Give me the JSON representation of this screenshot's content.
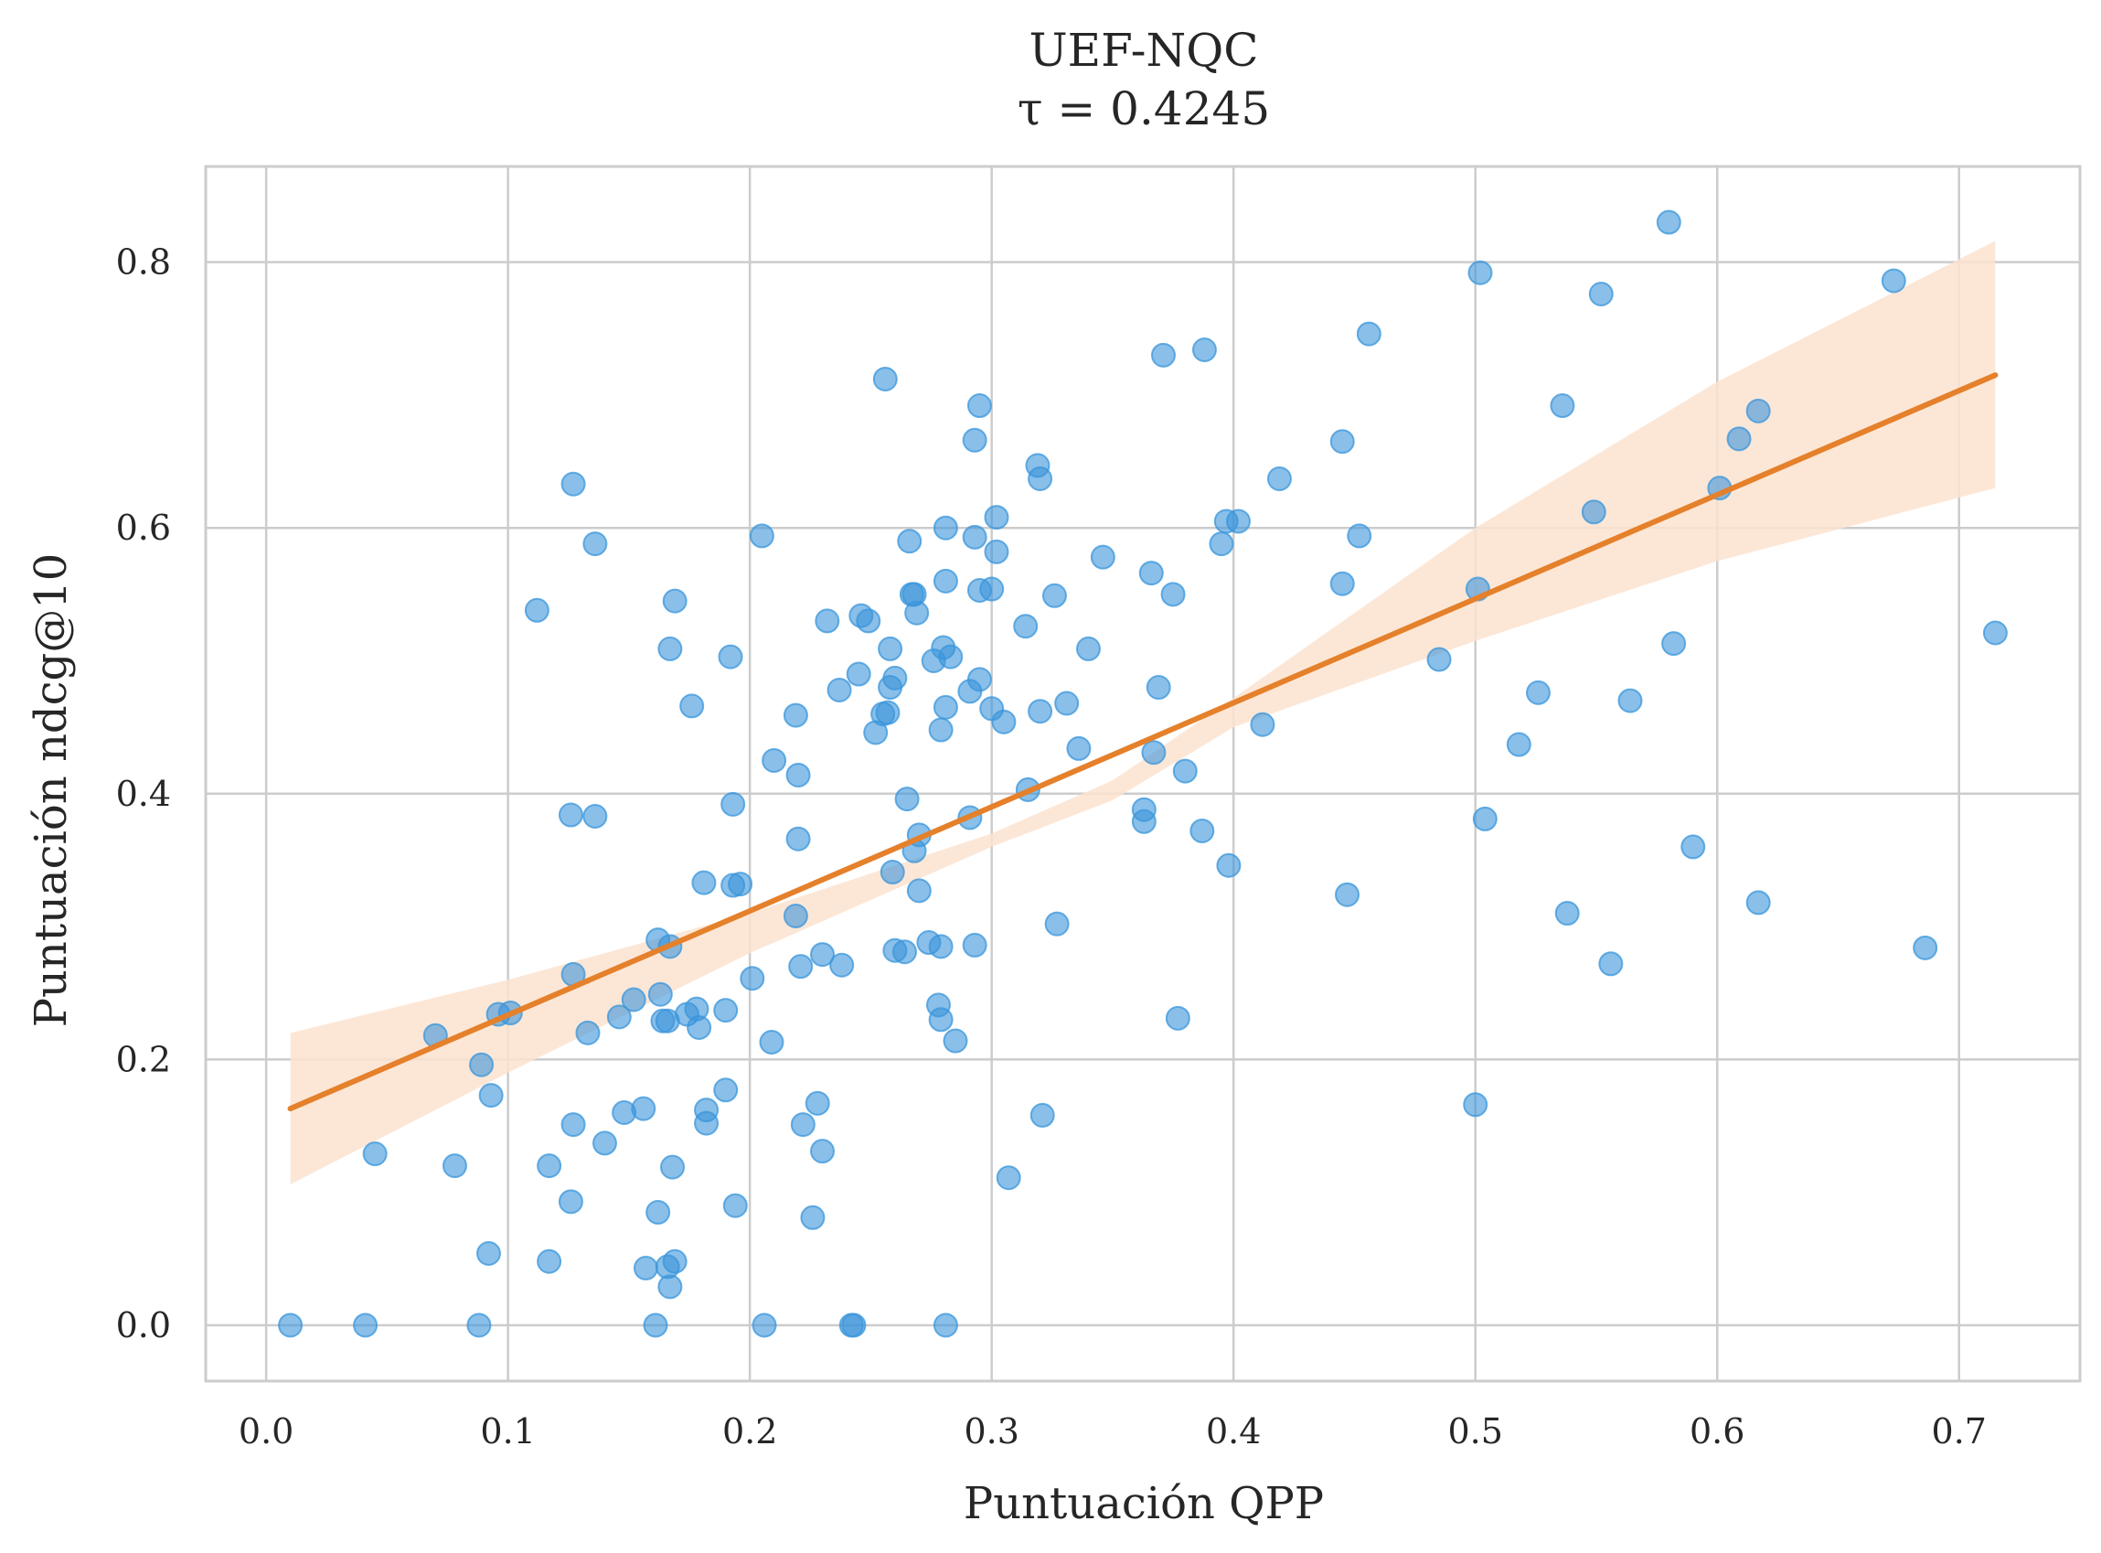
{
  "chart_data": {
    "type": "scatter",
    "title": "UEF-NQC",
    "subtitle": "τ = 0.4245",
    "xlabel": "Puntuación QPP",
    "ylabel": "Puntuación ndcg@10",
    "xlim": [
      -0.025,
      0.75
    ],
    "ylim": [
      -0.042,
      0.872
    ],
    "xticks": [
      0.0,
      0.1,
      0.2,
      0.3,
      0.4,
      0.5,
      0.6,
      0.7
    ],
    "xtick_labels": [
      "0.0",
      "0.1",
      "0.2",
      "0.3",
      "0.4",
      "0.5",
      "0.6",
      "0.7"
    ],
    "yticks": [
      0.0,
      0.2,
      0.4,
      0.6,
      0.8
    ],
    "ytick_labels": [
      "0.0",
      "0.2",
      "0.4",
      "0.6",
      "0.8"
    ],
    "grid": true,
    "colors": {
      "points": "#3a95db",
      "regression": "#e5802b",
      "band": "#fbe3d0",
      "grid": "#cccccc",
      "spine": "#cccccc",
      "text": "#262626"
    },
    "regression": {
      "x": [
        0.01,
        0.715
      ],
      "y": [
        0.163,
        0.715
      ],
      "ci_upper": [
        [
          0.01,
          0.22
        ],
        [
          0.1,
          0.26
        ],
        [
          0.2,
          0.31
        ],
        [
          0.3,
          0.37
        ],
        [
          0.35,
          0.41
        ],
        [
          0.4,
          0.472
        ],
        [
          0.5,
          0.6
        ],
        [
          0.6,
          0.71
        ],
        [
          0.715,
          0.816
        ]
      ],
      "ci_lower": [
        [
          0.01,
          0.106
        ],
        [
          0.1,
          0.19
        ],
        [
          0.2,
          0.28
        ],
        [
          0.3,
          0.36
        ],
        [
          0.35,
          0.395
        ],
        [
          0.4,
          0.45
        ],
        [
          0.5,
          0.515
        ],
        [
          0.6,
          0.575
        ],
        [
          0.715,
          0.63
        ]
      ]
    },
    "points": [
      [
        0.01,
        0.0
      ],
      [
        0.041,
        0.0
      ],
      [
        0.088,
        0.0
      ],
      [
        0.161,
        0.0
      ],
      [
        0.206,
        0.0
      ],
      [
        0.242,
        0.0
      ],
      [
        0.243,
        0.0
      ],
      [
        0.281,
        0.0
      ],
      [
        0.045,
        0.129
      ],
      [
        0.07,
        0.218
      ],
      [
        0.078,
        0.12
      ],
      [
        0.089,
        0.196
      ],
      [
        0.092,
        0.054
      ],
      [
        0.093,
        0.173
      ],
      [
        0.096,
        0.234
      ],
      [
        0.101,
        0.235
      ],
      [
        0.112,
        0.538
      ],
      [
        0.117,
        0.048
      ],
      [
        0.117,
        0.12
      ],
      [
        0.126,
        0.093
      ],
      [
        0.126,
        0.384
      ],
      [
        0.127,
        0.151
      ],
      [
        0.127,
        0.264
      ],
      [
        0.127,
        0.633
      ],
      [
        0.133,
        0.22
      ],
      [
        0.136,
        0.588
      ],
      [
        0.136,
        0.383
      ],
      [
        0.14,
        0.137
      ],
      [
        0.146,
        0.232
      ],
      [
        0.148,
        0.16
      ],
      [
        0.152,
        0.245
      ],
      [
        0.156,
        0.163
      ],
      [
        0.157,
        0.043
      ],
      [
        0.162,
        0.085
      ],
      [
        0.162,
        0.29
      ],
      [
        0.163,
        0.249
      ],
      [
        0.164,
        0.229
      ],
      [
        0.166,
        0.229
      ],
      [
        0.166,
        0.044
      ],
      [
        0.167,
        0.029
      ],
      [
        0.167,
        0.285
      ],
      [
        0.167,
        0.509
      ],
      [
        0.168,
        0.119
      ],
      [
        0.169,
        0.048
      ],
      [
        0.169,
        0.545
      ],
      [
        0.174,
        0.234
      ],
      [
        0.176,
        0.466
      ],
      [
        0.178,
        0.238
      ],
      [
        0.179,
        0.224
      ],
      [
        0.181,
        0.333
      ],
      [
        0.182,
        0.162
      ],
      [
        0.182,
        0.152
      ],
      [
        0.19,
        0.237
      ],
      [
        0.19,
        0.177
      ],
      [
        0.192,
        0.503
      ],
      [
        0.193,
        0.392
      ],
      [
        0.193,
        0.331
      ],
      [
        0.194,
        0.09
      ],
      [
        0.196,
        0.332
      ],
      [
        0.201,
        0.261
      ],
      [
        0.205,
        0.594
      ],
      [
        0.209,
        0.213
      ],
      [
        0.21,
        0.425
      ],
      [
        0.219,
        0.308
      ],
      [
        0.219,
        0.459
      ],
      [
        0.22,
        0.414
      ],
      [
        0.22,
        0.366
      ],
      [
        0.221,
        0.27
      ],
      [
        0.222,
        0.151
      ],
      [
        0.226,
        0.081
      ],
      [
        0.228,
        0.167
      ],
      [
        0.23,
        0.131
      ],
      [
        0.23,
        0.279
      ],
      [
        0.232,
        0.53
      ],
      [
        0.237,
        0.478
      ],
      [
        0.238,
        0.271
      ],
      [
        0.245,
        0.49
      ],
      [
        0.246,
        0.534
      ],
      [
        0.249,
        0.53
      ],
      [
        0.252,
        0.446
      ],
      [
        0.255,
        0.46
      ],
      [
        0.256,
        0.712
      ],
      [
        0.257,
        0.461
      ],
      [
        0.258,
        0.509
      ],
      [
        0.258,
        0.48
      ],
      [
        0.259,
        0.341
      ],
      [
        0.26,
        0.487
      ],
      [
        0.26,
        0.282
      ],
      [
        0.264,
        0.281
      ],
      [
        0.265,
        0.396
      ],
      [
        0.266,
        0.59
      ],
      [
        0.267,
        0.55
      ],
      [
        0.268,
        0.357
      ],
      [
        0.268,
        0.55
      ],
      [
        0.269,
        0.536
      ],
      [
        0.27,
        0.369
      ],
      [
        0.27,
        0.327
      ],
      [
        0.274,
        0.288
      ],
      [
        0.276,
        0.5
      ],
      [
        0.278,
        0.241
      ],
      [
        0.279,
        0.23
      ],
      [
        0.279,
        0.448
      ],
      [
        0.279,
        0.285
      ],
      [
        0.28,
        0.51
      ],
      [
        0.281,
        0.6
      ],
      [
        0.281,
        0.465
      ],
      [
        0.281,
        0.56
      ],
      [
        0.283,
        0.503
      ],
      [
        0.285,
        0.214
      ],
      [
        0.291,
        0.477
      ],
      [
        0.291,
        0.382
      ],
      [
        0.293,
        0.286
      ],
      [
        0.293,
        0.666
      ],
      [
        0.293,
        0.593
      ],
      [
        0.295,
        0.486
      ],
      [
        0.295,
        0.692
      ],
      [
        0.295,
        0.553
      ],
      [
        0.3,
        0.464
      ],
      [
        0.3,
        0.554
      ],
      [
        0.302,
        0.608
      ],
      [
        0.302,
        0.582
      ],
      [
        0.305,
        0.454
      ],
      [
        0.307,
        0.111
      ],
      [
        0.314,
        0.526
      ],
      [
        0.315,
        0.403
      ],
      [
        0.319,
        0.647
      ],
      [
        0.32,
        0.462
      ],
      [
        0.32,
        0.637
      ],
      [
        0.321,
        0.158
      ],
      [
        0.327,
        0.302
      ],
      [
        0.326,
        0.549
      ],
      [
        0.331,
        0.468
      ],
      [
        0.336,
        0.434
      ],
      [
        0.34,
        0.509
      ],
      [
        0.346,
        0.578
      ],
      [
        0.363,
        0.388
      ],
      [
        0.363,
        0.379
      ],
      [
        0.366,
        0.566
      ],
      [
        0.367,
        0.431
      ],
      [
        0.369,
        0.48
      ],
      [
        0.371,
        0.73
      ],
      [
        0.375,
        0.55
      ],
      [
        0.377,
        0.231
      ],
      [
        0.38,
        0.417
      ],
      [
        0.387,
        0.372
      ],
      [
        0.388,
        0.734
      ],
      [
        0.395,
        0.588
      ],
      [
        0.397,
        0.605
      ],
      [
        0.398,
        0.346
      ],
      [
        0.402,
        0.605
      ],
      [
        0.412,
        0.452
      ],
      [
        0.419,
        0.637
      ],
      [
        0.445,
        0.665
      ],
      [
        0.445,
        0.558
      ],
      [
        0.447,
        0.324
      ],
      [
        0.452,
        0.594
      ],
      [
        0.456,
        0.746
      ],
      [
        0.485,
        0.501
      ],
      [
        0.5,
        0.166
      ],
      [
        0.501,
        0.554
      ],
      [
        0.502,
        0.792
      ],
      [
        0.504,
        0.381
      ],
      [
        0.518,
        0.437
      ],
      [
        0.526,
        0.476
      ],
      [
        0.536,
        0.692
      ],
      [
        0.538,
        0.31
      ],
      [
        0.549,
        0.612
      ],
      [
        0.552,
        0.776
      ],
      [
        0.556,
        0.272
      ],
      [
        0.564,
        0.47
      ],
      [
        0.58,
        0.83
      ],
      [
        0.582,
        0.513
      ],
      [
        0.59,
        0.36
      ],
      [
        0.601,
        0.63
      ],
      [
        0.609,
        0.667
      ],
      [
        0.617,
        0.318
      ],
      [
        0.617,
        0.688
      ],
      [
        0.673,
        0.786
      ],
      [
        0.686,
        0.284
      ],
      [
        0.715,
        0.521
      ]
    ]
  }
}
